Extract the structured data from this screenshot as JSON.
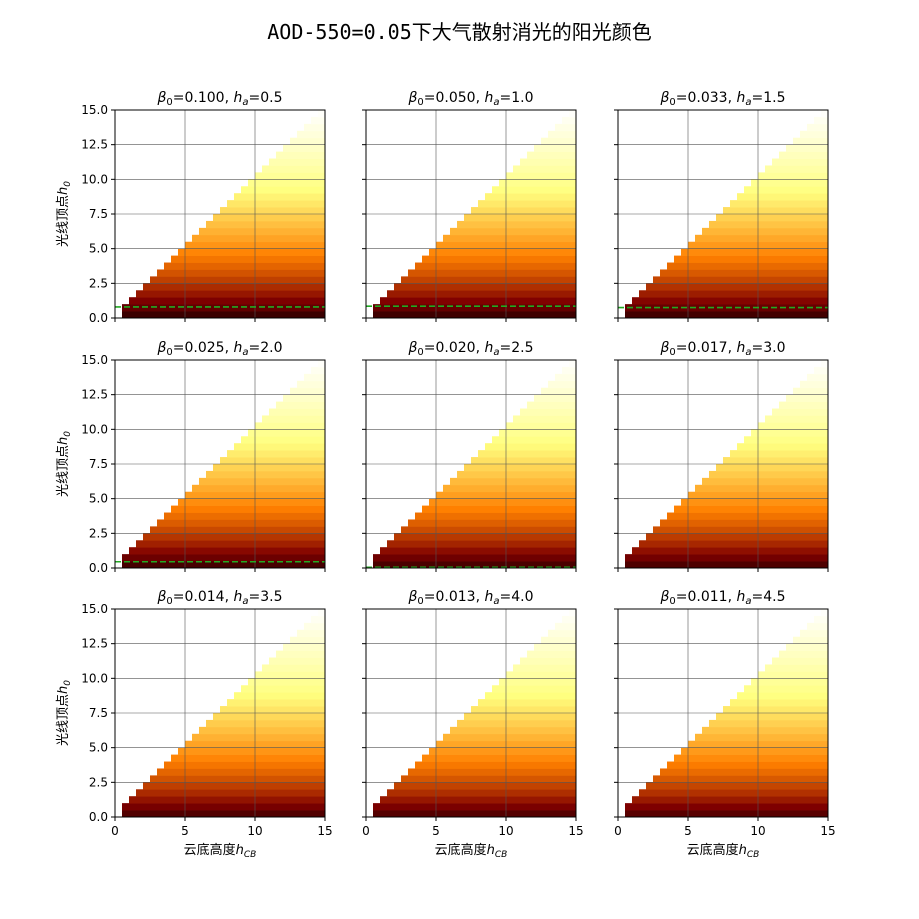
{
  "figure": {
    "title": "AOD-550=0.05下大气散射消光的阳光颜色"
  },
  "axes": {
    "xlabel_prefix": "云底高度",
    "xlabel_symbol": "h",
    "xlabel_sub": "CB",
    "ylabel_prefix": "光线顶点",
    "ylabel_symbol": "h",
    "ylabel_sub": "0",
    "xlim": [
      0,
      15
    ],
    "ylim": [
      0,
      15
    ],
    "xticks": [
      0,
      5,
      10,
      15
    ],
    "yticks": [
      0.0,
      2.5,
      5.0,
      7.5,
      10.0,
      12.5,
      15.0
    ],
    "xtick_labels": [
      "0",
      "5",
      "10",
      "15"
    ],
    "ytick_labels": [
      "0.0",
      "2.5",
      "5.0",
      "7.5",
      "10.0",
      "12.5",
      "15.0"
    ],
    "grid": true
  },
  "colors": {
    "grid": "#555555",
    "dashed_line": "#22aa22",
    "colormap": "afmhot"
  },
  "chart_data": [
    {
      "type": "heatmap",
      "beta0": "0.100",
      "ha": "0.5",
      "dashed_line_y": 0.8
    },
    {
      "type": "heatmap",
      "beta0": "0.050",
      "ha": "1.0",
      "dashed_line_y": 0.85
    },
    {
      "type": "heatmap",
      "beta0": "0.033",
      "ha": "1.5",
      "dashed_line_y": 0.75
    },
    {
      "type": "heatmap",
      "beta0": "0.025",
      "ha": "2.0",
      "dashed_line_y": 0.45
    },
    {
      "type": "heatmap",
      "beta0": "0.020",
      "ha": "2.5",
      "dashed_line_y": 0.05
    },
    {
      "type": "heatmap",
      "beta0": "0.017",
      "ha": "3.0",
      "dashed_line_y": null
    },
    {
      "type": "heatmap",
      "beta0": "0.014",
      "ha": "3.5",
      "dashed_line_y": null
    },
    {
      "type": "heatmap",
      "beta0": "0.013",
      "ha": "4.0",
      "dashed_line_y": null
    },
    {
      "type": "heatmap",
      "beta0": "0.011",
      "ha": "4.5",
      "dashed_line_y": null
    }
  ],
  "heatmap_grid": {
    "x_cell": 0.5,
    "y_cell": 0.5,
    "valid_region": "h0 < hCB, hCB > 0.5"
  }
}
